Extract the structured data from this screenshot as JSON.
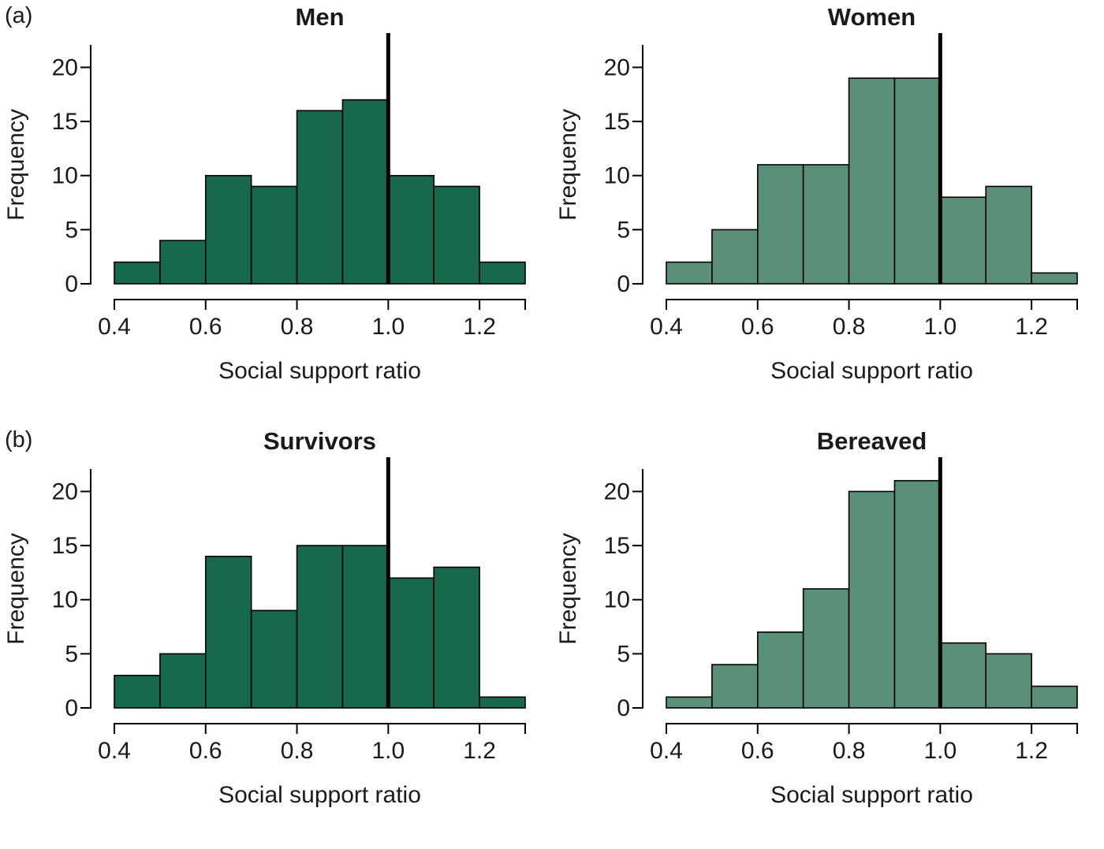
{
  "background": "#ffffff",
  "text_color": "#1a1a1a",
  "panels": [
    {
      "label": "(a)"
    },
    {
      "label": "(b)"
    }
  ],
  "chart_data": [
    {
      "type": "bar",
      "subtype": "histogram",
      "title": "Men",
      "xlabel": "Social support ratio",
      "ylabel": "Frequency",
      "bin_start": 0.4,
      "bin_width": 0.1,
      "values": [
        2,
        4,
        10,
        9,
        16,
        17,
        10,
        9,
        2
      ],
      "x_ticks": [
        0.4,
        0.6,
        0.8,
        1.0,
        1.2
      ],
      "x_tick_labels": [
        "0.4",
        "0.6",
        "0.8",
        "1.0",
        "1.2"
      ],
      "y_ticks": [
        0,
        5,
        10,
        15,
        20
      ],
      "xlim": [
        0.4,
        1.3
      ],
      "ylim": [
        0,
        22
      ],
      "bar_color": "#17694d",
      "bar_border_color": "#000000",
      "reference_line_x": 1.0,
      "reference_line_color": "#000000",
      "grid": false,
      "legend": "none"
    },
    {
      "type": "bar",
      "subtype": "histogram",
      "title": "Women",
      "xlabel": "Social support ratio",
      "ylabel": "Frequency",
      "bin_start": 0.4,
      "bin_width": 0.1,
      "values": [
        2,
        5,
        11,
        11,
        19,
        19,
        8,
        9,
        1
      ],
      "x_ticks": [
        0.4,
        0.6,
        0.8,
        1.0,
        1.2
      ],
      "x_tick_labels": [
        "0.4",
        "0.6",
        "0.8",
        "1.0",
        "1.2"
      ],
      "y_ticks": [
        0,
        5,
        10,
        15,
        20
      ],
      "xlim": [
        0.4,
        1.3
      ],
      "ylim": [
        0,
        22
      ],
      "bar_color": "#5a9078",
      "bar_border_color": "#000000",
      "reference_line_x": 1.0,
      "reference_line_color": "#000000",
      "grid": false,
      "legend": "none"
    },
    {
      "type": "bar",
      "subtype": "histogram",
      "title": "Survivors",
      "xlabel": "Social support ratio",
      "ylabel": "Frequency",
      "bin_start": 0.4,
      "bin_width": 0.1,
      "values": [
        3,
        5,
        14,
        9,
        15,
        15,
        12,
        13,
        1
      ],
      "x_ticks": [
        0.4,
        0.6,
        0.8,
        1.0,
        1.2
      ],
      "x_tick_labels": [
        "0.4",
        "0.6",
        "0.8",
        "1.0",
        "1.2"
      ],
      "y_ticks": [
        0,
        5,
        10,
        15,
        20
      ],
      "xlim": [
        0.4,
        1.3
      ],
      "ylim": [
        0,
        22
      ],
      "bar_color": "#17694d",
      "bar_border_color": "#000000",
      "reference_line_x": 1.0,
      "reference_line_color": "#000000",
      "grid": false,
      "legend": "none"
    },
    {
      "type": "bar",
      "subtype": "histogram",
      "title": "Bereaved",
      "xlabel": "Social support ratio",
      "ylabel": "Frequency",
      "bin_start": 0.4,
      "bin_width": 0.1,
      "values": [
        1,
        4,
        7,
        11,
        20,
        21,
        6,
        5,
        2
      ],
      "x_ticks": [
        0.4,
        0.6,
        0.8,
        1.0,
        1.2
      ],
      "x_tick_labels": [
        "0.4",
        "0.6",
        "0.8",
        "1.0",
        "1.2"
      ],
      "y_ticks": [
        0,
        5,
        10,
        15,
        20
      ],
      "xlim": [
        0.4,
        1.3
      ],
      "ylim": [
        0,
        22
      ],
      "bar_color": "#5a9078",
      "bar_border_color": "#000000",
      "reference_line_x": 1.0,
      "reference_line_color": "#000000",
      "grid": false,
      "legend": "none"
    }
  ]
}
